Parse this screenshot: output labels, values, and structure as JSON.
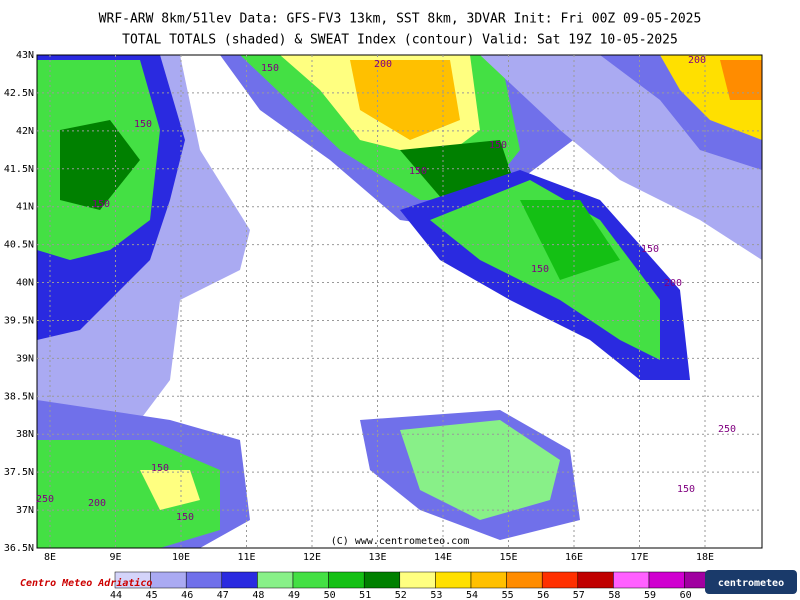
{
  "header": {
    "line1": "WRF-ARW 8km/51lev  Data: GFS-FV3 13km, SST 8km, 3DVAR  Init: Fri 00Z 09-05-2025",
    "line2": "TOTAL TOTALS (shaded) & SWEAT Index (contour)  Valid: Sat 19Z 10-05-2025"
  },
  "map": {
    "lat_labels": [
      "43N",
      "42.5N",
      "42N",
      "41.5N",
      "41N",
      "40.5N",
      "40N",
      "39.5N",
      "39N",
      "38.5N",
      "38N",
      "37.5N",
      "37N",
      "36.5N"
    ],
    "lon_labels": [
      "8E",
      "9E",
      "10E",
      "11E",
      "12E",
      "13E",
      "14E",
      "15E",
      "16E",
      "17E",
      "18E"
    ],
    "contour_labels": [
      "150",
      "200",
      "200",
      "150",
      "150",
      "150",
      "150",
      "150",
      "200",
      "150",
      "250",
      "150",
      "150",
      "150",
      "200",
      "250"
    ],
    "credit": "(C) www.centrometeo.com"
  },
  "colorbar": {
    "ticks": [
      44,
      45,
      46,
      47,
      48,
      49,
      50,
      51,
      52,
      53,
      54,
      55,
      56,
      57,
      58,
      59,
      60
    ],
    "colors": [
      "#d4d4fa",
      "#aaaaf2",
      "#7070ea",
      "#2a2ae0",
      "#88f088",
      "#44e044",
      "#14c014",
      "#008000",
      "#ffff80",
      "#ffe000",
      "#ffc000",
      "#ff8c00",
      "#ff3000",
      "#c00000",
      "#ff60ff",
      "#d000d0",
      "#a000a0"
    ]
  },
  "logos": {
    "left": "Centro Meteo Adriatico",
    "right": "centrometeo"
  }
}
